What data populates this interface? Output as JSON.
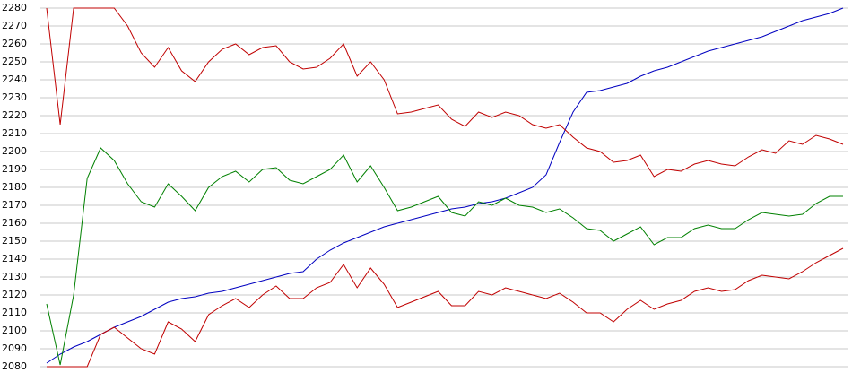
{
  "chart_data": {
    "type": "line",
    "categories": [
      null,
      null,
      null,
      null,
      null,
      null,
      null,
      null,
      null,
      null,
      null,
      null,
      null,
      null,
      null,
      null,
      null,
      null,
      null,
      null,
      null,
      null,
      null,
      null,
      null,
      null,
      null,
      null,
      null,
      null,
      null,
      null,
      null,
      null,
      null,
      null,
      null,
      null,
      null,
      null,
      null,
      null,
      null,
      null,
      null,
      null,
      null,
      null,
      null,
      null,
      null,
      null,
      null,
      null,
      null,
      null,
      null,
      null,
      null,
      null
    ],
    "series": [
      {
        "color": "#0000c0",
        "values": [
          2082,
          2087,
          2091,
          2094,
          2098,
          2102,
          2105,
          2108,
          2112,
          2116,
          2118,
          2119,
          2121,
          2122,
          2124,
          2126,
          2128,
          2130,
          2132,
          2133,
          2140,
          2145,
          2149,
          2152,
          2155,
          2158,
          2160,
          2162,
          2164,
          2166,
          2168,
          2169,
          2171,
          2172,
          2174,
          2177,
          2180,
          2187,
          2205,
          2222,
          2233,
          2234,
          2236,
          2238,
          2242,
          2245,
          2247,
          2250,
          2253,
          2256,
          2258,
          2260,
          2262,
          2264,
          2267,
          2270,
          2273,
          2275,
          2277,
          2280
        ]
      },
      {
        "color": "#c00000",
        "values": [
          2280,
          2215,
          2280,
          2280,
          2280,
          2280,
          2270,
          2255,
          2247,
          2258,
          2245,
          2239,
          2250,
          2257,
          2260,
          2254,
          2258,
          2259,
          2250,
          2246,
          2247,
          2252,
          2260,
          2242,
          2250,
          2240,
          2221,
          2222,
          2224,
          2226,
          2218,
          2214,
          2222,
          2219,
          2222,
          2220,
          2215,
          2213,
          2215,
          2208,
          2202,
          2200,
          2194,
          2195,
          2198,
          2186,
          2190,
          2189,
          2193,
          2195,
          2193,
          2192,
          2197,
          2201,
          2199,
          2206,
          2204,
          2209,
          2207,
          2204
        ]
      },
      {
        "color": "#008000",
        "values": [
          2115,
          2081,
          2120,
          2185,
          2202,
          2195,
          2182,
          2172,
          2169,
          2182,
          2175,
          2167,
          2180,
          2186,
          2189,
          2183,
          2190,
          2191,
          2184,
          2182,
          2186,
          2190,
          2198,
          2183,
          2192,
          2180,
          2167,
          2169,
          2172,
          2175,
          2166,
          2164,
          2172,
          2170,
          2174,
          2170,
          2169,
          2166,
          2168,
          2163,
          2157,
          2156,
          2150,
          2154,
          2158,
          2148,
          2152,
          2152,
          2157,
          2159,
          2157,
          2157,
          2162,
          2166,
          2165,
          2164,
          2165,
          2171,
          2175,
          2175
        ]
      },
      {
        "color": "#c00000",
        "values": [
          2080,
          2080,
          2080,
          2080,
          2098,
          2102,
          2096,
          2090,
          2087,
          2105,
          2101,
          2094,
          2109,
          2114,
          2118,
          2113,
          2120,
          2125,
          2118,
          2118,
          2124,
          2127,
          2137,
          2124,
          2135,
          2126,
          2113,
          2116,
          2119,
          2122,
          2114,
          2114,
          2122,
          2120,
          2124,
          2122,
          2120,
          2118,
          2121,
          2116,
          2110,
          2110,
          2105,
          2112,
          2117,
          2112,
          2115,
          2117,
          2122,
          2124,
          2122,
          2123,
          2128,
          2131,
          2130,
          2129,
          2133,
          2138,
          2142,
          2146
        ]
      }
    ],
    "ylim": [
      2080,
      2280
    ],
    "yticks": [
      2080,
      2090,
      2100,
      2110,
      2120,
      2130,
      2140,
      2150,
      2160,
      2170,
      2180,
      2190,
      2200,
      2210,
      2220,
      2230,
      2240,
      2250,
      2260,
      2270,
      2280
    ],
    "grid": true
  }
}
